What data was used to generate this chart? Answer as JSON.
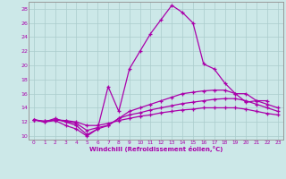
{
  "xlabel": "Windchill (Refroidissement éolien,°C)",
  "background_color": "#cce8e8",
  "grid_color": "#aacccc",
  "line_color": "#aa00aa",
  "x_ticks": [
    0,
    1,
    2,
    3,
    4,
    5,
    6,
    7,
    8,
    9,
    10,
    11,
    12,
    13,
    14,
    15,
    16,
    17,
    18,
    19,
    20,
    21,
    22,
    23
  ],
  "y_ticks": [
    10,
    12,
    14,
    16,
    18,
    20,
    22,
    24,
    26,
    28
  ],
  "ylim": [
    9.5,
    29.0
  ],
  "xlim": [
    -0.5,
    23.5
  ],
  "series": [
    [
      12.3,
      12.0,
      12.2,
      11.5,
      11.0,
      10.0,
      11.0,
      17.0,
      13.5,
      19.5,
      22.0,
      24.5,
      26.5,
      28.5,
      27.5,
      26.0,
      20.2,
      19.5,
      17.5,
      16.0,
      14.8,
      15.0,
      15.0,
      null
    ],
    [
      12.3,
      12.0,
      12.5,
      12.0,
      11.5,
      10.2,
      11.0,
      11.5,
      12.5,
      13.5,
      14.0,
      14.5,
      15.0,
      15.5,
      16.0,
      16.2,
      16.4,
      16.5,
      16.5,
      16.0,
      16.0,
      15.0,
      14.5,
      14.0
    ],
    [
      12.3,
      12.1,
      12.3,
      12.1,
      11.8,
      10.8,
      11.2,
      11.5,
      12.5,
      13.0,
      13.3,
      13.7,
      14.0,
      14.3,
      14.6,
      14.8,
      15.0,
      15.2,
      15.3,
      15.3,
      15.0,
      14.5,
      14.0,
      13.5
    ],
    [
      12.3,
      12.1,
      12.3,
      12.2,
      12.0,
      11.5,
      11.5,
      11.8,
      12.2,
      12.5,
      12.8,
      13.0,
      13.3,
      13.5,
      13.7,
      13.8,
      14.0,
      14.0,
      14.0,
      14.0,
      13.8,
      13.5,
      13.2,
      13.0
    ]
  ]
}
